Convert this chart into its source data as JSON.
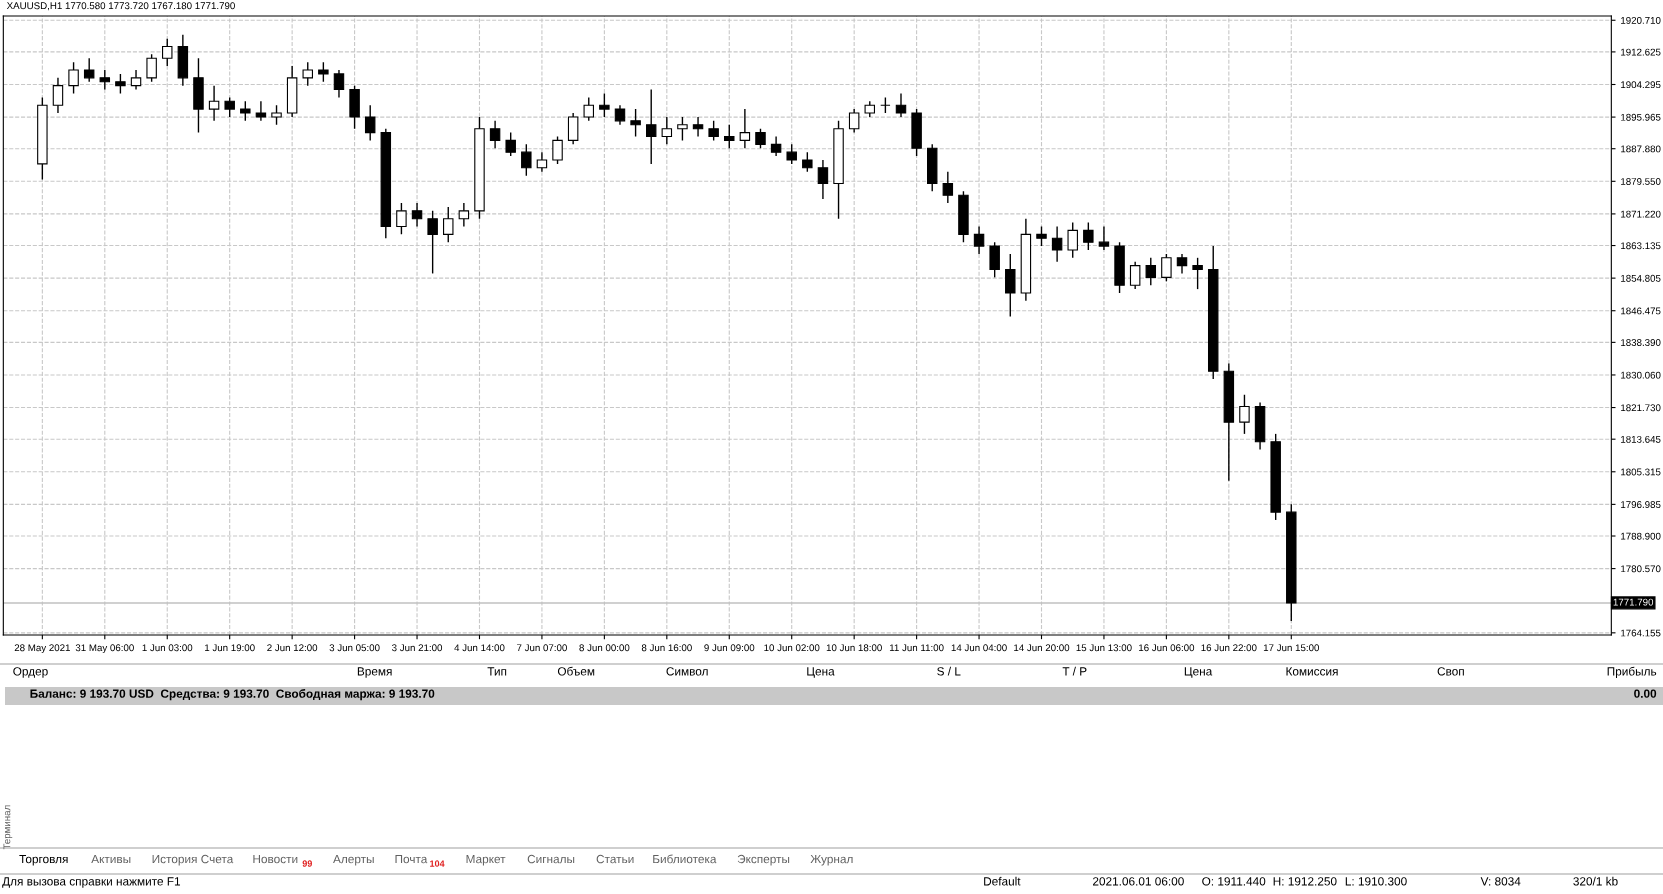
{
  "chart_data": {
    "type": "candlestick",
    "title": "XAUUSD,H1 1770.580 1773.720 1767.180 1771.790",
    "categories": [
      "28 May 2021",
      null,
      null,
      null,
      "31 May 06:00",
      null,
      null,
      null,
      "1 Jun 03:00",
      null,
      null,
      null,
      "1 Jun 19:00",
      null,
      null,
      null,
      "2 Jun 12:00",
      null,
      null,
      null,
      "3 Jun 05:00",
      null,
      null,
      null,
      "3 Jun 21:00",
      null,
      null,
      null,
      "4 Jun 14:00",
      null,
      null,
      null,
      "7 Jun 07:00",
      null,
      null,
      null,
      "8 Jun 00:00",
      null,
      null,
      null,
      "8 Jun 16:00",
      null,
      null,
      null,
      "9 Jun 09:00",
      null,
      null,
      null,
      "10 Jun 02:00",
      null,
      null,
      null,
      "10 Jun 18:00",
      null,
      null,
      null,
      "11 Jun 11:00",
      null,
      null,
      null,
      "14 Jun 04:00",
      null,
      null,
      null,
      "14 Jun 20:00",
      null,
      null,
      null,
      "15 Jun 13:00",
      null,
      null,
      null,
      "16 Jun 06:00",
      null,
      null,
      null,
      "16 Jun 22:00",
      null,
      null,
      null,
      "17 Jun 15:00",
      null,
      null,
      null,
      null,
      null,
      null,
      null,
      null,
      null,
      null,
      null,
      null,
      null,
      null,
      null,
      null,
      null,
      null,
      null,
      null
    ],
    "ohlc": [
      [
        1884,
        1901,
        1880,
        1899
      ],
      [
        1899,
        1906,
        1897,
        1904
      ],
      [
        1904,
        1910,
        1902,
        1908
      ],
      [
        1908,
        1911,
        1905,
        1906
      ],
      [
        1906,
        1908,
        1903,
        1905
      ],
      [
        1905,
        1907,
        1902,
        1904
      ],
      [
        1904,
        1908,
        1903,
        1906
      ],
      [
        1906,
        1912,
        1905,
        1911
      ],
      [
        1911,
        1916,
        1909,
        1914
      ],
      [
        1914,
        1917,
        1904,
        1906
      ],
      [
        1906,
        1911,
        1892,
        1898
      ],
      [
        1898,
        1904,
        1895,
        1900
      ],
      [
        1900,
        1901,
        1896,
        1898
      ],
      [
        1898,
        1900,
        1895,
        1897
      ],
      [
        1897,
        1900,
        1895,
        1896
      ],
      [
        1896,
        1899,
        1894,
        1897
      ],
      [
        1897,
        1909,
        1896,
        1906
      ],
      [
        1906,
        1910,
        1904,
        1908
      ],
      [
        1908,
        1910,
        1905,
        1907
      ],
      [
        1907,
        1908,
        1901,
        1903
      ],
      [
        1903,
        1904,
        1893,
        1896
      ],
      [
        1896,
        1899,
        1890,
        1892
      ],
      [
        1892,
        1893,
        1865,
        1868
      ],
      [
        1868,
        1874,
        1866,
        1872
      ],
      [
        1872,
        1874,
        1868,
        1870
      ],
      [
        1870,
        1872,
        1856,
        1866
      ],
      [
        1866,
        1873,
        1864,
        1870
      ],
      [
        1870,
        1874,
        1868,
        1872
      ],
      [
        1872,
        1896,
        1870,
        1893
      ],
      [
        1893,
        1895,
        1888,
        1890
      ],
      [
        1890,
        1892,
        1886,
        1887
      ],
      [
        1887,
        1889,
        1881,
        1883
      ],
      [
        1883,
        1887,
        1882,
        1885
      ],
      [
        1885,
        1891,
        1884,
        1890
      ],
      [
        1890,
        1897,
        1889,
        1896
      ],
      [
        1896,
        1901,
        1895,
        1899
      ],
      [
        1899,
        1902,
        1896,
        1898
      ],
      [
        1898,
        1899,
        1894,
        1895
      ],
      [
        1895,
        1898,
        1891,
        1894
      ],
      [
        1894,
        1903,
        1884,
        1891
      ],
      [
        1891,
        1896,
        1889,
        1893
      ],
      [
        1893,
        1896,
        1890,
        1894
      ],
      [
        1894,
        1896,
        1891,
        1893
      ],
      [
        1893,
        1895,
        1890,
        1891
      ],
      [
        1891,
        1894,
        1888,
        1890
      ],
      [
        1890,
        1898,
        1888,
        1892
      ],
      [
        1892,
        1893,
        1888,
        1889
      ],
      [
        1889,
        1891,
        1886,
        1887
      ],
      [
        1887,
        1889,
        1884,
        1885
      ],
      [
        1885,
        1887,
        1882,
        1883
      ],
      [
        1883,
        1885,
        1875,
        1879
      ],
      [
        1879,
        1895,
        1870,
        1893
      ],
      [
        1893,
        1898,
        1892,
        1897
      ],
      [
        1897,
        1900,
        1896,
        1899
      ],
      [
        1899,
        1901,
        1897,
        1899
      ],
      [
        1899,
        1902,
        1896,
        1897
      ],
      [
        1897,
        1898,
        1886,
        1888
      ],
      [
        1888,
        1889,
        1877,
        1879
      ],
      [
        1879,
        1882,
        1874,
        1876
      ],
      [
        1876,
        1877,
        1864,
        1866
      ],
      [
        1866,
        1868,
        1861,
        1863
      ],
      [
        1863,
        1864,
        1855,
        1857
      ],
      [
        1857,
        1861,
        1845,
        1851
      ],
      [
        1851,
        1870,
        1849,
        1866
      ],
      [
        1866,
        1868,
        1863,
        1865
      ],
      [
        1865,
        1868,
        1859,
        1862
      ],
      [
        1862,
        1869,
        1860,
        1867
      ],
      [
        1867,
        1869,
        1862,
        1864
      ],
      [
        1864,
        1868,
        1862,
        1863
      ],
      [
        1863,
        1864,
        1851,
        1853
      ],
      [
        1853,
        1859,
        1852,
        1858
      ],
      [
        1858,
        1860,
        1853,
        1855
      ],
      [
        1855,
        1861,
        1854,
        1860
      ],
      [
        1860,
        1861,
        1856,
        1858
      ],
      [
        1858,
        1860,
        1852,
        1857
      ],
      [
        1857,
        1863,
        1829,
        1831
      ],
      [
        1831,
        1833,
        1803,
        1818
      ],
      [
        1818,
        1825,
        1815,
        1822
      ],
      [
        1822,
        1823,
        1811,
        1813
      ],
      [
        1813,
        1815,
        1793,
        1795
      ],
      [
        1795,
        1797,
        1767.18,
        1771.79
      ],
      null,
      null,
      null,
      null,
      null,
      null,
      null,
      null,
      null,
      null,
      null,
      null,
      null,
      null,
      null,
      null,
      null,
      null,
      null,
      null
    ],
    "ylim": [
      1763.6,
      1921.8
    ],
    "yticks": [
      {
        "value": 1920.71,
        "label": "1920.710"
      },
      {
        "value": 1912.625,
        "label": "1912.625"
      },
      {
        "value": 1904.295,
        "label": "1904.295"
      },
      {
        "value": 1895.965,
        "label": "1895.965"
      },
      {
        "value": 1887.88,
        "label": "1887.880"
      },
      {
        "value": 1879.55,
        "label": "1879.550"
      },
      {
        "value": 1871.22,
        "label": "1871.220"
      },
      {
        "value": 1863.135,
        "label": "1863.135"
      },
      {
        "value": 1854.805,
        "label": "1854.805"
      },
      {
        "value": 1846.475,
        "label": "1846.475"
      },
      {
        "value": 1838.39,
        "label": "1838.390"
      },
      {
        "value": 1830.06,
        "label": "1830.060"
      },
      {
        "value": 1821.73,
        "label": "1821.730"
      },
      {
        "value": 1813.645,
        "label": "1813.645"
      },
      {
        "value": 1805.315,
        "label": "1805.315"
      },
      {
        "value": 1796.985,
        "label": "1796.985"
      },
      {
        "value": 1788.9,
        "label": "1788.900"
      },
      {
        "value": 1780.57,
        "label": "1780.570"
      },
      {
        "value": 1764.155,
        "label": "1764.155"
      }
    ],
    "ref_lines": [
      {
        "axis": "y",
        "value": 1771.79,
        "label": "1771.790",
        "color": "#c0c0c0"
      }
    ],
    "grid": true,
    "annotations": [
      "Ордер",
      "Время",
      "Тип",
      "Объем",
      "Символ",
      "Цена",
      "S / L",
      "T / P",
      "Цена",
      "Комиссия",
      "Своп",
      "Прибыль",
      "Баланс: 9 193.70 USD  Средства: 9 193.70  Свободная маржа: 9 193.70",
      "0.00",
      "Торговля",
      "Активы",
      "История Счета",
      "Новости",
      "99",
      "Алерты",
      "Почта",
      "104",
      "Маркет",
      "Сигналы",
      "Статьи",
      "Библиотека",
      "Эксперты",
      "Журнал",
      "Терминал",
      "Для вызова справки нажмите F1",
      "Default",
      "2021.06.01 06:00",
      "O: 1911.440",
      "H: 1912.250",
      "L: 1910.300",
      "V: 8034",
      "320/1 kb"
    ]
  }
}
